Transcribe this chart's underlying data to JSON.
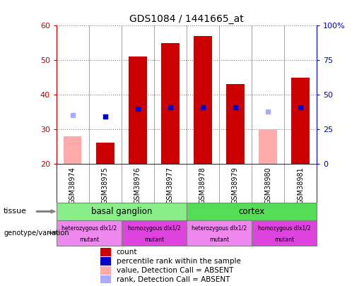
{
  "title": "GDS1084 / 1441665_at",
  "samples": [
    "GSM38974",
    "GSM38975",
    "GSM38976",
    "GSM38977",
    "GSM38978",
    "GSM38979",
    "GSM38980",
    "GSM38981"
  ],
  "count_values": [
    null,
    26,
    51,
    55,
    57,
    43,
    null,
    45
  ],
  "count_absent_values": [
    28,
    null,
    null,
    null,
    null,
    null,
    30,
    null
  ],
  "percentile_rank": [
    null,
    34,
    40,
    41,
    41,
    41,
    null,
    41
  ],
  "percentile_rank_absent": [
    35,
    null,
    null,
    null,
    null,
    null,
    38,
    null
  ],
  "ylim_left": [
    20,
    60
  ],
  "ylim_right": [
    0,
    100
  ],
  "yticks_left": [
    20,
    30,
    40,
    50,
    60
  ],
  "yticks_right": [
    0,
    25,
    50,
    75,
    100
  ],
  "ytick_labels_right": [
    "0",
    "25",
    "50",
    "75",
    "100%"
  ],
  "bar_color_present": "#cc0000",
  "bar_color_absent": "#ffaaaa",
  "dot_color_present": "#0000cc",
  "dot_color_absent": "#aaaaff",
  "tissue_groups": [
    {
      "label": "basal ganglion",
      "start": 0,
      "end": 4,
      "color": "#88ee88"
    },
    {
      "label": "cortex",
      "start": 4,
      "end": 8,
      "color": "#55dd55"
    }
  ],
  "genotype_groups": [
    {
      "label": "heterozygous dlx1/2\nmutant",
      "start": 0,
      "end": 2,
      "color": "#ee88ee"
    },
    {
      "label": "homozygous dlx1/2\nmutant",
      "start": 2,
      "end": 4,
      "color": "#dd44dd"
    },
    {
      "label": "heterozygous dlx1/2\nmutant",
      "start": 4,
      "end": 6,
      "color": "#ee88ee"
    },
    {
      "label": "homozygous dlx1/2\nmutant",
      "start": 6,
      "end": 8,
      "color": "#dd44dd"
    }
  ],
  "legend_items": [
    {
      "label": "count",
      "color": "#cc0000"
    },
    {
      "label": "percentile rank within the sample",
      "color": "#0000cc"
    },
    {
      "label": "value, Detection Call = ABSENT",
      "color": "#ffaaaa"
    },
    {
      "label": "rank, Detection Call = ABSENT",
      "color": "#aaaaff"
    }
  ],
  "bar_bottom": 20,
  "bar_width": 0.55
}
